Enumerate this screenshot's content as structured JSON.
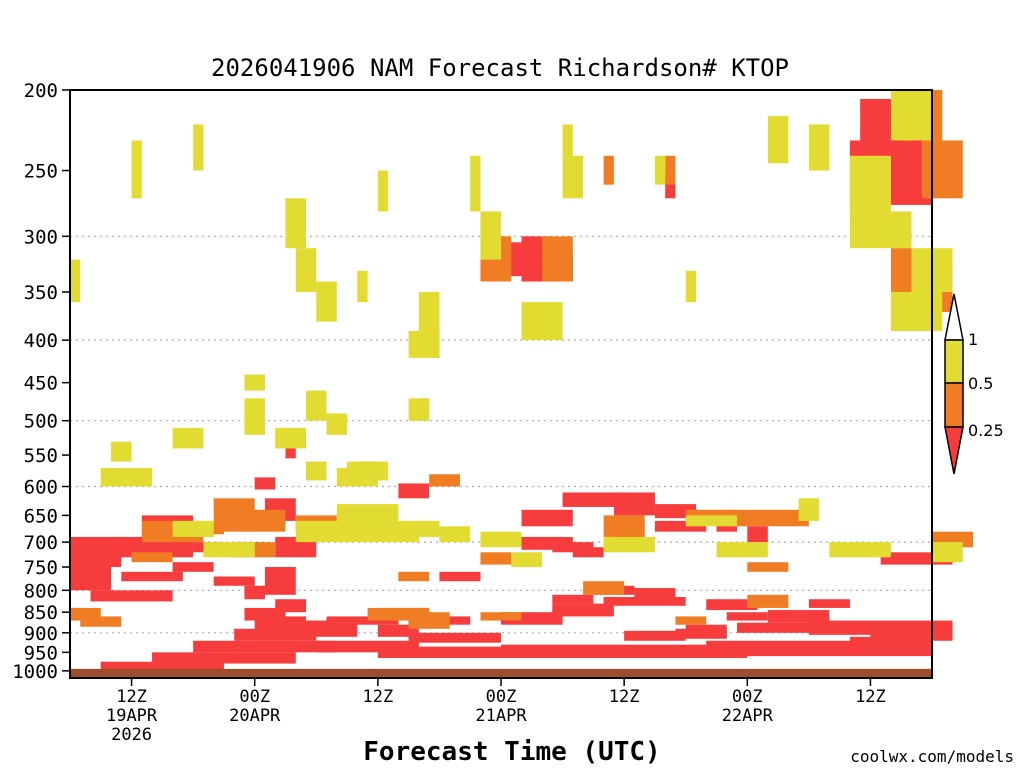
{
  "chart_data": {
    "type": "heatmap",
    "title": "2026041906 NAM Forecast Richardson# KTOP",
    "xlabel": "Forecast Time (UTC)",
    "ylabel": "",
    "credit": "coolwx.com/models",
    "y_axis": {
      "unit": "hPa",
      "range": [
        1020,
        200
      ],
      "ticks": [
        "200",
        "250",
        "300",
        "350",
        "400",
        "450",
        "500",
        "550",
        "600",
        "650",
        "700",
        "750",
        "800",
        "850",
        "900",
        "950",
        "1000"
      ],
      "gridlines": [
        300,
        400,
        500,
        600,
        700,
        800,
        900,
        1000
      ]
    },
    "x_axis": {
      "unit": "forecast hour",
      "range": [
        0,
        84
      ],
      "ticks": [
        {
          "hour": 6,
          "lines": [
            "12Z",
            "19APR",
            "2026"
          ]
        },
        {
          "hour": 18,
          "lines": [
            "00Z",
            "20APR"
          ]
        },
        {
          "hour": 30,
          "lines": [
            "12Z"
          ]
        },
        {
          "hour": 42,
          "lines": [
            "00Z",
            "21APR"
          ]
        },
        {
          "hour": 54,
          "lines": [
            "12Z"
          ]
        },
        {
          "hour": 66,
          "lines": [
            "00Z",
            "22APR"
          ]
        },
        {
          "hour": 78,
          "lines": [
            "12Z"
          ]
        }
      ]
    },
    "legend": {
      "placement": "right",
      "labels": [
        "1",
        "0.5",
        "0.25"
      ],
      "colors": {
        "low": "#f63c3c",
        "mid": "#f07c24",
        "high": "#e2dc32",
        "ground": "#9c4e2c"
      }
    },
    "ground_pressure_hpa": 1000,
    "series": [
      {
        "name": "Ri < 0.25",
        "color": "#f63c3c",
        "cells": [
          [
            0,
            690,
            5,
            60
          ],
          [
            0,
            750,
            4,
            50
          ],
          [
            4,
            690,
            8,
            40
          ],
          [
            5,
            760,
            6,
            20
          ],
          [
            2,
            800,
            8,
            25
          ],
          [
            8,
            690,
            4,
            30
          ],
          [
            10,
            740,
            4,
            20
          ],
          [
            14,
            770,
            4,
            20
          ],
          [
            16,
            700,
            2,
            30
          ],
          [
            17,
            790,
            2,
            30
          ],
          [
            19,
            620,
            3,
            40
          ],
          [
            17,
            840,
            4,
            30
          ],
          [
            20,
            690,
            4,
            40
          ],
          [
            19,
            750,
            3,
            60
          ],
          [
            18,
            860,
            5,
            40
          ],
          [
            20,
            820,
            3,
            30
          ],
          [
            16,
            890,
            8,
            30
          ],
          [
            12,
            920,
            14,
            30
          ],
          [
            8,
            950,
            14,
            30
          ],
          [
            3,
            975,
            12,
            20
          ],
          [
            24,
            920,
            10,
            30
          ],
          [
            22,
            870,
            6,
            40
          ],
          [
            25,
            860,
            7,
            20
          ],
          [
            33,
            900,
            9,
            25
          ],
          [
            30,
            880,
            4,
            30
          ],
          [
            30,
            935,
            36,
            30
          ],
          [
            31,
            840,
            4,
            20
          ],
          [
            33,
            860,
            6,
            20
          ],
          [
            42,
            930,
            20,
            35
          ],
          [
            42,
            850,
            6,
            30
          ],
          [
            47,
            830,
            6,
            30
          ],
          [
            47,
            810,
            4,
            20
          ],
          [
            51,
            790,
            4,
            20
          ],
          [
            52,
            815,
            8,
            20
          ],
          [
            55,
            795,
            4,
            20
          ],
          [
            44,
            640,
            5,
            30
          ],
          [
            44,
            690,
            5,
            25
          ],
          [
            47,
            700,
            4,
            20
          ],
          [
            49,
            710,
            3,
            20
          ],
          [
            48,
            610,
            6,
            25
          ],
          [
            53,
            610,
            4,
            40
          ],
          [
            53,
            660,
            3,
            30
          ],
          [
            57,
            630,
            4,
            25
          ],
          [
            57,
            660,
            5,
            20
          ],
          [
            54,
            895,
            6,
            25
          ],
          [
            60,
            880,
            4,
            30
          ],
          [
            62,
            920,
            22,
            40
          ],
          [
            59,
            890,
            5,
            25
          ],
          [
            65,
            875,
            10,
            25
          ],
          [
            64,
            850,
            4,
            20
          ],
          [
            68,
            845,
            6,
            30
          ],
          [
            72,
            870,
            12,
            35
          ],
          [
            78,
            890,
            6,
            30
          ],
          [
            76,
            910,
            8,
            40
          ],
          [
            84,
            870,
            2,
            50
          ],
          [
            79,
            720,
            7,
            25
          ],
          [
            66,
            670,
            2,
            30
          ],
          [
            62,
            820,
            5,
            25
          ],
          [
            72,
            820,
            4,
            20
          ],
          [
            7,
            650,
            5,
            40
          ],
          [
            12,
            700,
            3,
            20
          ],
          [
            41,
            305,
            4,
            30
          ],
          [
            44,
            300,
            3,
            40
          ],
          [
            46,
            315,
            3,
            25
          ],
          [
            36,
            760,
            4,
            20
          ],
          [
            32,
            595,
            3,
            25
          ],
          [
            21,
            530,
            1,
            25
          ],
          [
            18,
            585,
            2,
            20
          ],
          [
            63,
            660,
            2,
            20
          ],
          [
            77,
            205,
            4,
            30
          ],
          [
            76,
            230,
            8,
            45
          ],
          [
            58,
            250,
            1,
            20
          ]
        ]
      },
      {
        "name": "0.25 ≤ Ri < 0.5",
        "color": "#f07c24",
        "cells": [
          [
            7,
            660,
            6,
            40
          ],
          [
            11,
            665,
            4,
            20
          ],
          [
            14,
            620,
            4,
            60
          ],
          [
            17,
            640,
            4,
            40
          ],
          [
            22,
            650,
            4,
            30
          ],
          [
            18,
            700,
            2,
            30
          ],
          [
            6,
            720,
            4,
            20
          ],
          [
            0,
            840,
            3,
            30
          ],
          [
            1,
            860,
            4,
            25
          ],
          [
            29,
            840,
            6,
            30
          ],
          [
            33,
            850,
            4,
            40
          ],
          [
            40,
            300,
            3,
            40
          ],
          [
            46,
            300,
            3,
            40
          ],
          [
            35,
            580,
            3,
            20
          ],
          [
            52,
            650,
            4,
            40
          ],
          [
            60,
            640,
            5,
            20
          ],
          [
            64,
            640,
            8,
            30
          ],
          [
            66,
            740,
            4,
            20
          ],
          [
            66,
            810,
            4,
            30
          ],
          [
            50,
            780,
            4,
            30
          ],
          [
            40,
            850,
            4,
            20
          ],
          [
            59,
            860,
            3,
            20
          ],
          [
            40,
            720,
            3,
            25
          ],
          [
            84,
            680,
            4,
            30
          ],
          [
            77,
            270,
            2,
            30
          ],
          [
            82,
            200,
            3,
            30
          ],
          [
            83,
            230,
            4,
            40
          ],
          [
            80,
            310,
            2,
            40
          ],
          [
            82,
            330,
            4,
            40
          ],
          [
            32,
            760,
            3,
            20
          ],
          [
            34,
            470,
            1,
            30
          ],
          [
            35,
            390,
            1,
            30
          ],
          [
            28,
            560,
            2,
            20
          ],
          [
            58,
            240,
            1,
            20
          ],
          [
            52,
            240,
            1,
            20
          ]
        ]
      },
      {
        "name": "0.5 ≤ Ri < 1",
        "color": "#e2dc32",
        "cells": [
          [
            0,
            320,
            1,
            40
          ],
          [
            4,
            530,
            2,
            30
          ],
          [
            3,
            570,
            5,
            30
          ],
          [
            10,
            510,
            3,
            30
          ],
          [
            17,
            440,
            2,
            20
          ],
          [
            17,
            470,
            2,
            50
          ],
          [
            23,
            560,
            2,
            30
          ],
          [
            26,
            570,
            4,
            30
          ],
          [
            26,
            630,
            6,
            40
          ],
          [
            22,
            660,
            12,
            40
          ],
          [
            34,
            660,
            2,
            30
          ],
          [
            36,
            670,
            3,
            30
          ],
          [
            40,
            680,
            4,
            30
          ],
          [
            43,
            720,
            3,
            30
          ],
          [
            52,
            690,
            5,
            30
          ],
          [
            60,
            650,
            5,
            20
          ],
          [
            63,
            700,
            5,
            30
          ],
          [
            71,
            620,
            2,
            40
          ],
          [
            74,
            700,
            6,
            30
          ],
          [
            84,
            700,
            3,
            40
          ],
          [
            80,
            350,
            5,
            40
          ],
          [
            82,
            310,
            4,
            40
          ],
          [
            76,
            280,
            6,
            30
          ],
          [
            76,
            240,
            4,
            40
          ],
          [
            72,
            220,
            2,
            30
          ],
          [
            80,
            200,
            4,
            30
          ],
          [
            68,
            215,
            2,
            30
          ],
          [
            40,
            280,
            2,
            40
          ],
          [
            48,
            240,
            2,
            30
          ],
          [
            44,
            360,
            4,
            40
          ],
          [
            34,
            350,
            2,
            40
          ],
          [
            33,
            390,
            3,
            30
          ],
          [
            21,
            270,
            2,
            40
          ],
          [
            22,
            310,
            2,
            40
          ],
          [
            24,
            340,
            2,
            40
          ],
          [
            28,
            330,
            1,
            30
          ],
          [
            33,
            470,
            2,
            30
          ],
          [
            27,
            560,
            4,
            30
          ],
          [
            23,
            460,
            2,
            40
          ],
          [
            25,
            490,
            2,
            30
          ],
          [
            12,
            220,
            1,
            30
          ],
          [
            6,
            230,
            1,
            40
          ],
          [
            39,
            240,
            1,
            40
          ],
          [
            30,
            250,
            1,
            30
          ],
          [
            60,
            330,
            1,
            30
          ],
          [
            57,
            240,
            1,
            20
          ],
          [
            48,
            220,
            1,
            20
          ],
          [
            20,
            510,
            3,
            30
          ],
          [
            10,
            660,
            4,
            30
          ],
          [
            13,
            700,
            5,
            30
          ]
        ]
      }
    ]
  }
}
